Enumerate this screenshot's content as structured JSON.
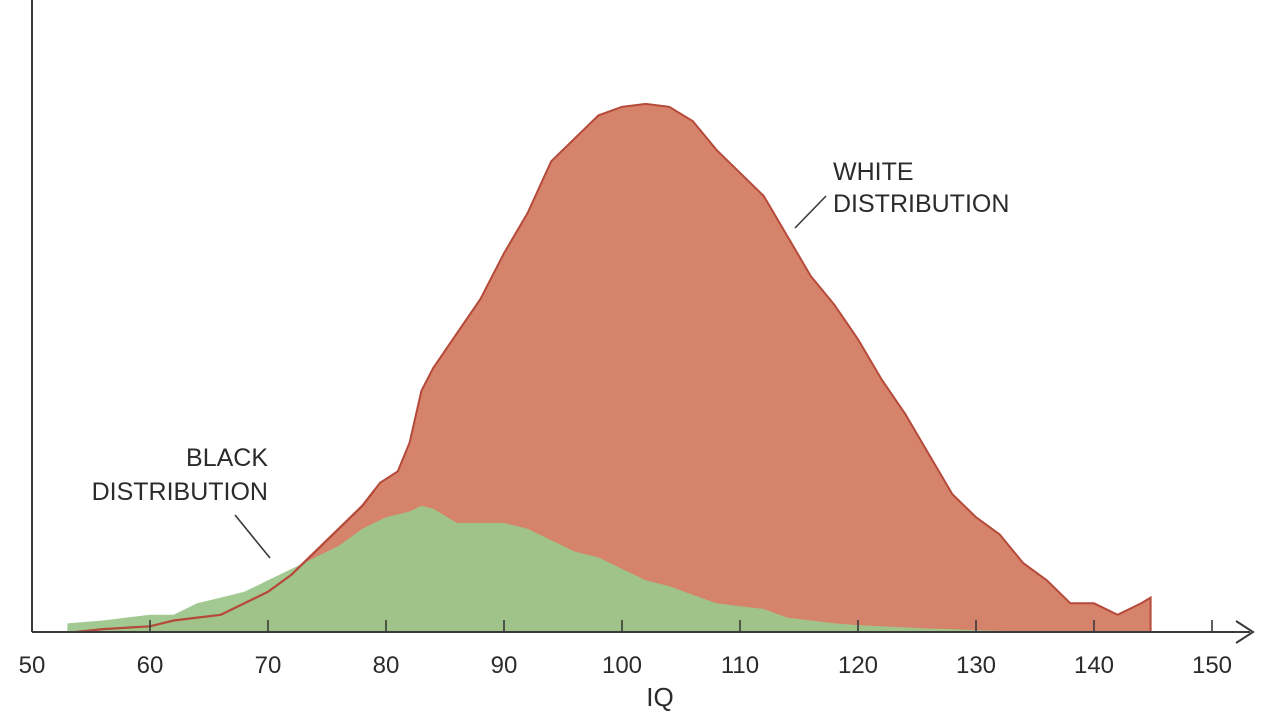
{
  "chart_data": {
    "type": "area",
    "xlabel": "IQ",
    "ylabel": "",
    "xlim": [
      50,
      150
    ],
    "ylim": [
      0,
      100
    ],
    "x_ticks": [
      50,
      60,
      70,
      80,
      90,
      100,
      110,
      120,
      130,
      140,
      150
    ],
    "colors": {
      "white_fill": "#d6836b",
      "white_stroke": "#b54a3a",
      "black_fill": "#9dc68c",
      "axis": "#3a3a3a",
      "text": "#2b2b2b"
    },
    "series": [
      {
        "name": "WHITE DISTRIBUTION",
        "x": [
          53.7,
          56,
          60,
          62,
          64,
          66,
          68,
          70,
          72,
          74,
          76,
          78,
          79.5,
          81,
          82,
          83,
          84,
          86,
          88,
          90,
          92,
          94,
          96,
          98,
          100,
          102,
          104,
          106,
          108,
          110,
          112,
          114,
          116,
          118,
          120,
          122,
          124,
          126,
          128,
          130,
          132,
          134,
          136,
          138,
          140,
          142,
          144,
          144.8
        ],
        "values": [
          0,
          0.5,
          1,
          2,
          2.5,
          3,
          5,
          7,
          10,
          14,
          18,
          22,
          26,
          28,
          33,
          42,
          46,
          52,
          58,
          66,
          73,
          82,
          86,
          90,
          91.5,
          92,
          91.5,
          89,
          84,
          80,
          76,
          69,
          62,
          57,
          51,
          44,
          38,
          31,
          24,
          20,
          17,
          12,
          9,
          5,
          5,
          3,
          5,
          6
        ]
      },
      {
        "name": "BLACK DISTRIBUTION",
        "x": [
          53,
          56,
          58,
          60,
          62,
          64,
          66,
          68,
          70,
          72,
          74,
          76,
          78,
          80,
          82,
          83,
          84,
          86,
          88,
          90,
          92,
          94,
          96,
          98,
          100,
          102,
          104,
          106,
          108,
          110,
          112,
          114,
          116,
          118,
          120,
          122,
          124,
          126,
          128,
          130,
          132,
          134,
          135.5
        ],
        "values": [
          1.5,
          2,
          2.5,
          3,
          3,
          5,
          6,
          7,
          9,
          11,
          13,
          15,
          18,
          20,
          21,
          22,
          21.5,
          19,
          19,
          19,
          18,
          16,
          14,
          13,
          11,
          9,
          8,
          6.5,
          5,
          4.5,
          4,
          2.5,
          2,
          1.5,
          1.2,
          1,
          0.8,
          0.6,
          0.5,
          0.3,
          0.2,
          0.1,
          0
        ]
      }
    ],
    "annotations": [
      {
        "series": 0,
        "lines": [
          "WHITE",
          "DISTRIBUTION"
        ]
      },
      {
        "series": 1,
        "lines": [
          "BLACK",
          "DISTRIBUTION"
        ]
      }
    ]
  }
}
